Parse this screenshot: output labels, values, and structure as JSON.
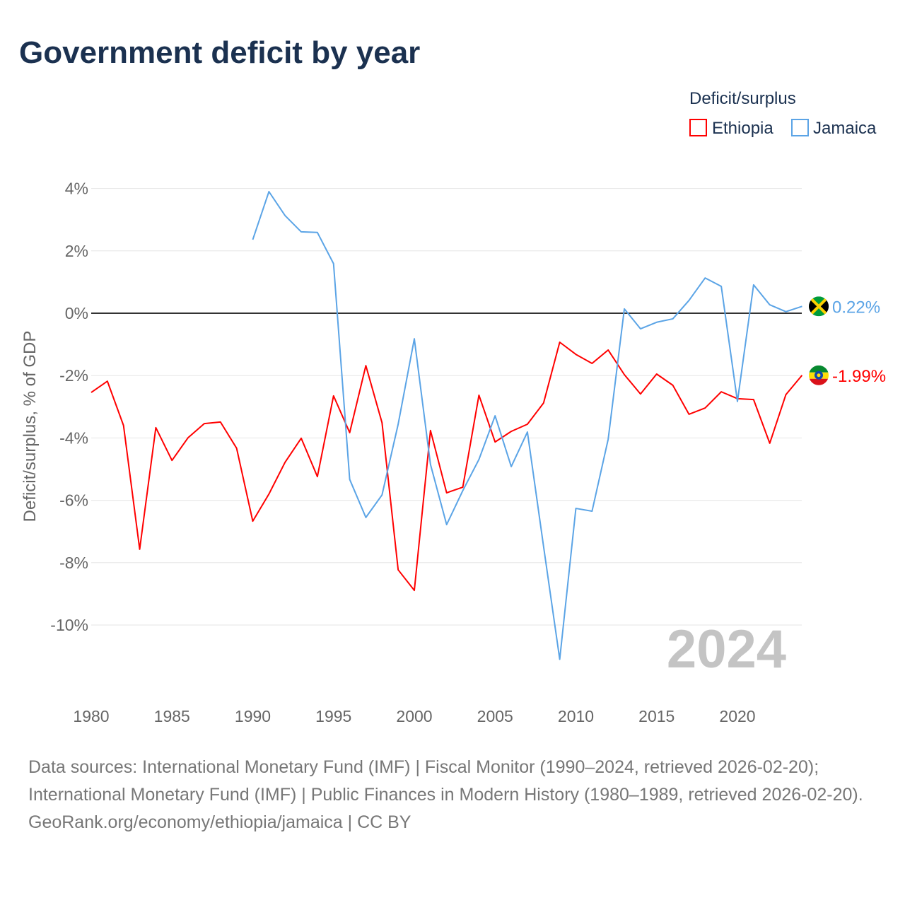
{
  "title": "Government deficit by year",
  "legend": {
    "title": "Deficit/surplus",
    "items": [
      {
        "name": "Ethiopia",
        "color": "#ff0000"
      },
      {
        "name": "Jamaica",
        "color": "#5ba4e6"
      }
    ]
  },
  "year_watermark": "2024",
  "source_lines": [
    "Data sources: International Monetary Fund (IMF) | Fiscal Monitor (1990–2024, retrieved 2026-02-20); International Monetary Fund (IMF) | Public Finances in Modern History (1980–1989, retrieved 2026-02-20).",
    "GeoRank.org/economy/ethiopia/jamaica | CC BY"
  ],
  "chart_data": {
    "type": "line",
    "title": "Government deficit by year",
    "xlabel": "",
    "ylabel": "Deficit/surplus, % of GDP",
    "xlim": [
      1980,
      2024
    ],
    "x_ticks": [
      1980,
      1985,
      1990,
      1995,
      2000,
      2005,
      2010,
      2015,
      2020
    ],
    "y_ticks": [
      4,
      2,
      0,
      -2,
      -4,
      -6,
      -8,
      -10
    ],
    "y_tick_labels": [
      "4%",
      "2%",
      "0%",
      "-2%",
      "-4%",
      "-6%",
      "-8%",
      "-10%"
    ],
    "grid": true,
    "legend_position": "top-right",
    "series": [
      {
        "name": "Ethiopia",
        "color": "#ff0000",
        "start_year": 1980,
        "end_label": "-1.99%",
        "flag": "ethiopia-flag",
        "values": [
          -2.54,
          -2.18,
          -3.6,
          -7.57,
          -3.67,
          -4.72,
          -3.99,
          -3.54,
          -3.49,
          -4.33,
          -6.67,
          -5.8,
          -4.78,
          -4.01,
          -5.24,
          -2.65,
          -3.83,
          -1.68,
          -3.51,
          -8.23,
          -8.89,
          -3.76,
          -5.76,
          -5.58,
          -2.63,
          -4.13,
          -3.79,
          -3.56,
          -2.88,
          -0.93,
          -1.32,
          -1.61,
          -1.18,
          -1.97,
          -2.59,
          -1.95,
          -2.31,
          -3.24,
          -3.04,
          -2.52,
          -2.74,
          -2.77,
          -4.17,
          -2.61,
          -1.99
        ]
      },
      {
        "name": "Jamaica",
        "color": "#5ba4e6",
        "start_year": 1990,
        "end_label": "0.22%",
        "flag": "jamaica-flag",
        "values": [
          2.36,
          3.9,
          3.13,
          2.61,
          2.59,
          1.59,
          -5.33,
          -6.55,
          -5.83,
          -3.56,
          -0.82,
          -4.85,
          -6.78,
          -5.69,
          -4.69,
          -3.29,
          -4.92,
          -3.81,
          -7.48,
          -11.1,
          -6.26,
          -6.35,
          -4.04,
          0.14,
          -0.5,
          -0.29,
          -0.18,
          0.41,
          1.13,
          0.86,
          -2.83,
          0.91,
          0.27,
          0.05,
          0.22
        ]
      }
    ]
  }
}
